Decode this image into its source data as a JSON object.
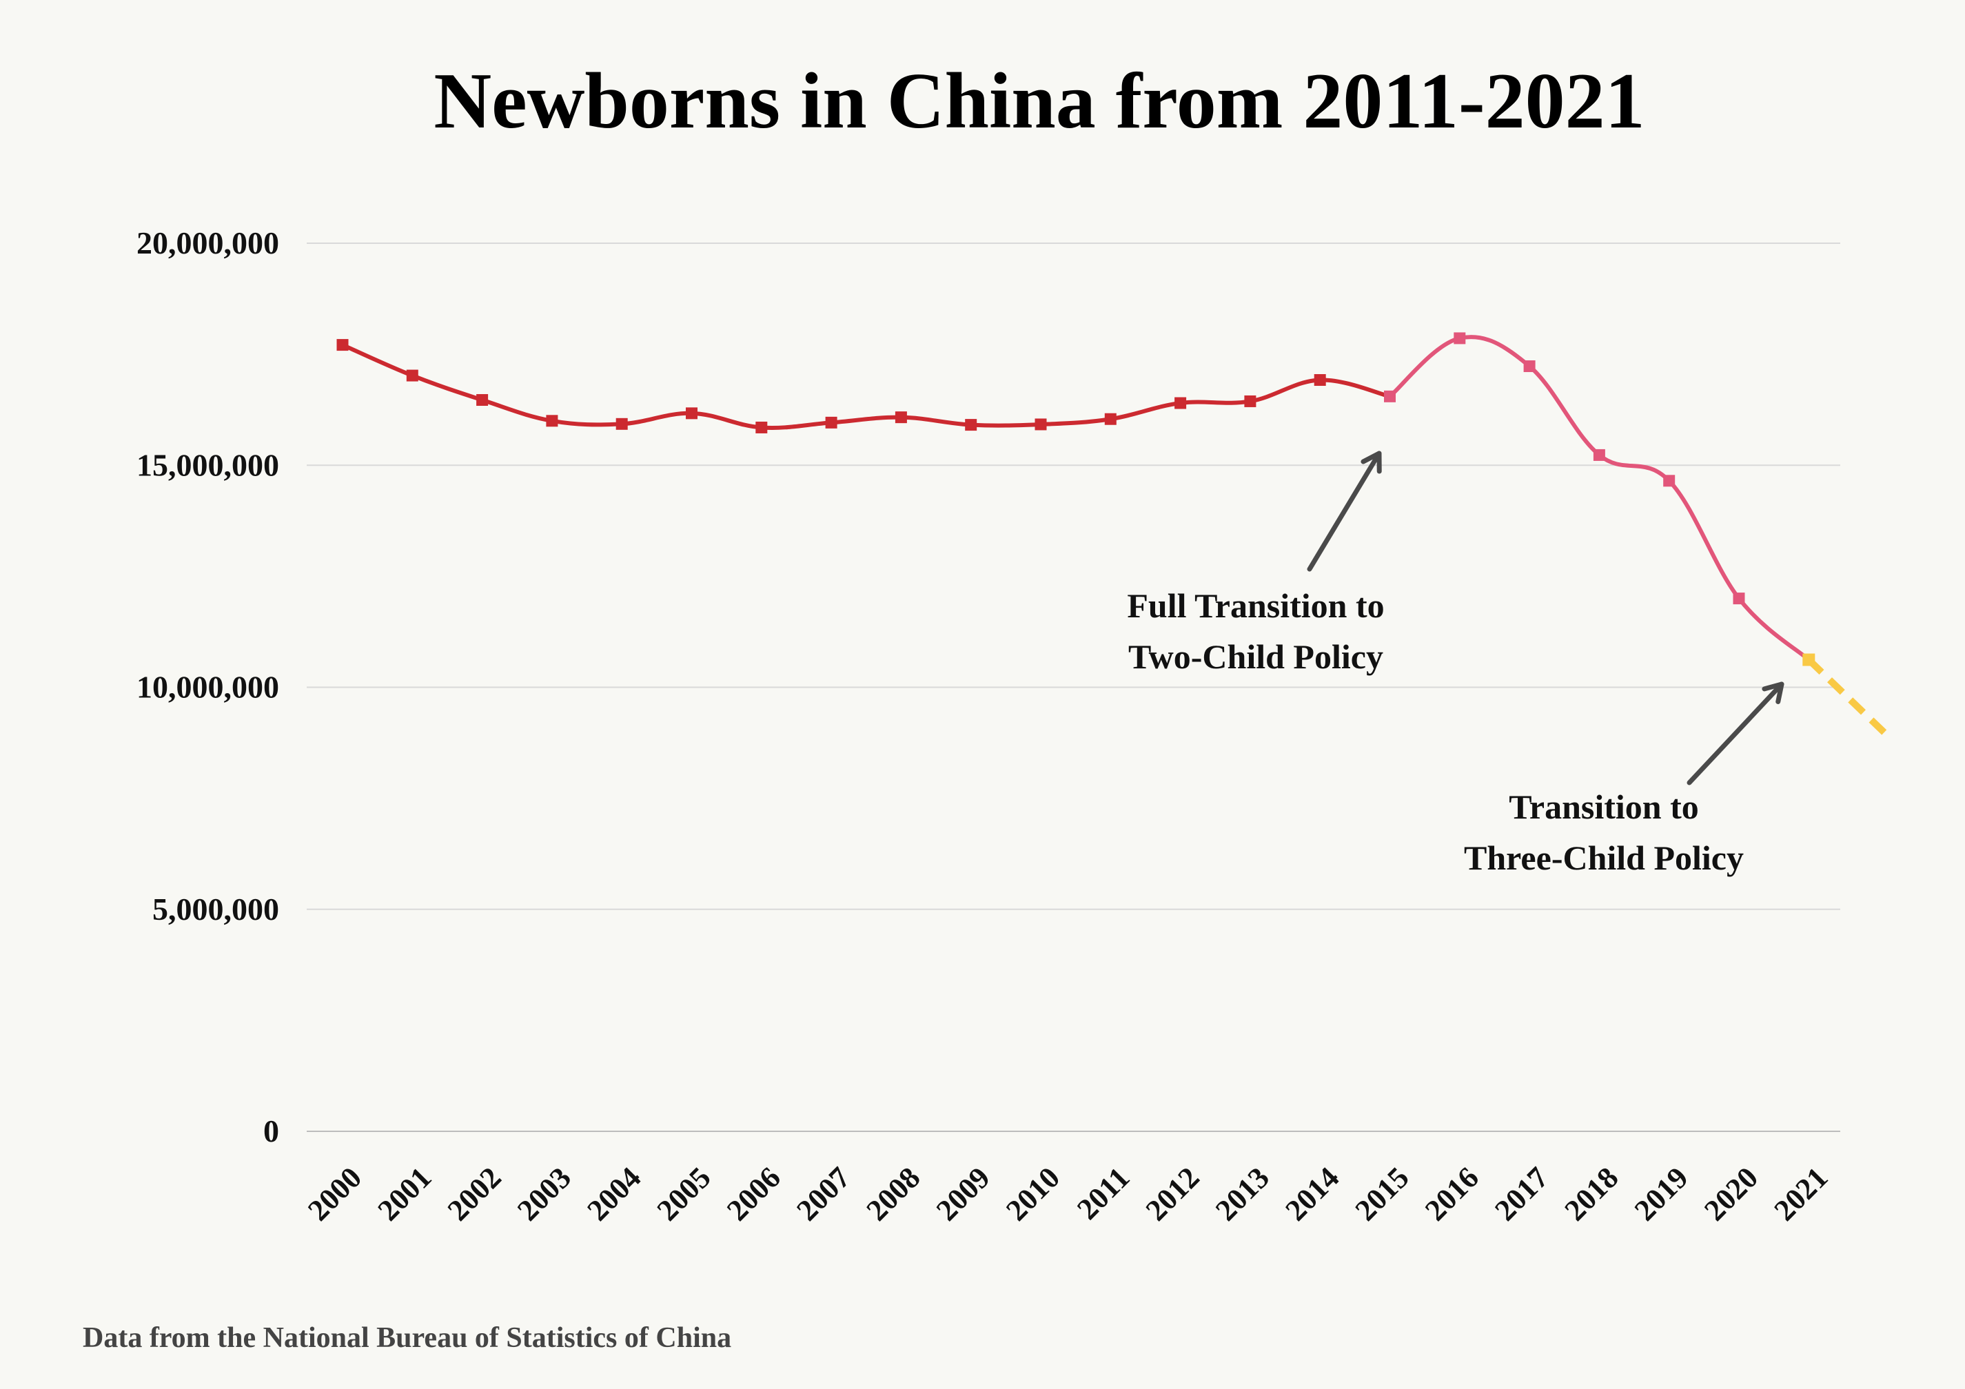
{
  "chart_data": {
    "type": "line",
    "title": "Newborns in China from 2011-2021",
    "xlabel": "",
    "ylabel": "",
    "categories": [
      "2000",
      "2001",
      "2002",
      "2003",
      "2004",
      "2005",
      "2006",
      "2007",
      "2008",
      "2009",
      "2010",
      "2011",
      "2012",
      "2013",
      "2014",
      "2015",
      "2016",
      "2017",
      "2018",
      "2019",
      "2020",
      "2021"
    ],
    "values": [
      17710000,
      17020000,
      16470000,
      16000000,
      15930000,
      16170000,
      15850000,
      15960000,
      16080000,
      15910000,
      15920000,
      16040000,
      16400000,
      16440000,
      16920000,
      16550000,
      17860000,
      17230000,
      15230000,
      14650000,
      12000000,
      10620000
    ],
    "projection": {
      "x": [
        "2021",
        "2022"
      ],
      "values": [
        10620000,
        8900000
      ]
    },
    "ylim": [
      0,
      20000000
    ],
    "yticks": [
      0,
      5000000,
      10000000,
      15000000,
      20000000
    ],
    "ytick_labels": [
      "0",
      "5,000,000",
      "10,000,000",
      "15,000,000",
      "20,000,000"
    ],
    "grid": true,
    "colors": {
      "early_line": "#cc2a30",
      "late_line": "#e2567a",
      "projection": "#f9c945",
      "arrow": "#4a4a4a",
      "grid": "#d9d9d9",
      "background": "#f8f8f4",
      "text": "#111111",
      "source_text": "#444444"
    },
    "segment_break_category": "2015",
    "annotations": [
      {
        "lines": [
          "Full Transition to",
          "Two-Child Policy"
        ],
        "points_to": "2015"
      },
      {
        "lines": [
          "Transition to",
          "Three-Child Policy"
        ],
        "points_to": "2021"
      }
    ],
    "source": "Data from the National Bureau of Statistics of China"
  }
}
